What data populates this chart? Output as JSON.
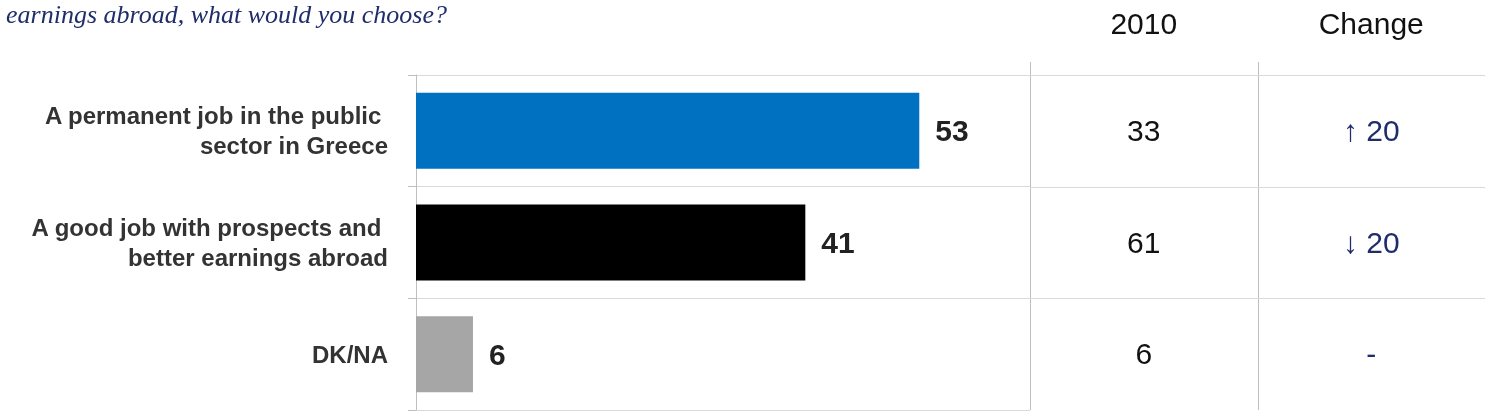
{
  "chart_data": {
    "type": "bar",
    "orientation": "horizontal",
    "title": "earnings abroad, what would you choose?",
    "categories": [
      "A permanent job in the public sector in Greece",
      "A good job with prospects and better earnings abroad",
      "DK/NA"
    ],
    "values": [
      53,
      41,
      6
    ],
    "colors": [
      "#0070c0",
      "#000000",
      "#a6a6a6"
    ],
    "data_labels": true,
    "grid": "y",
    "annotations": [
      "2010",
      "33",
      "61",
      "6",
      "Change",
      "↑ 20",
      "↓ 20",
      "-"
    ]
  }
}
